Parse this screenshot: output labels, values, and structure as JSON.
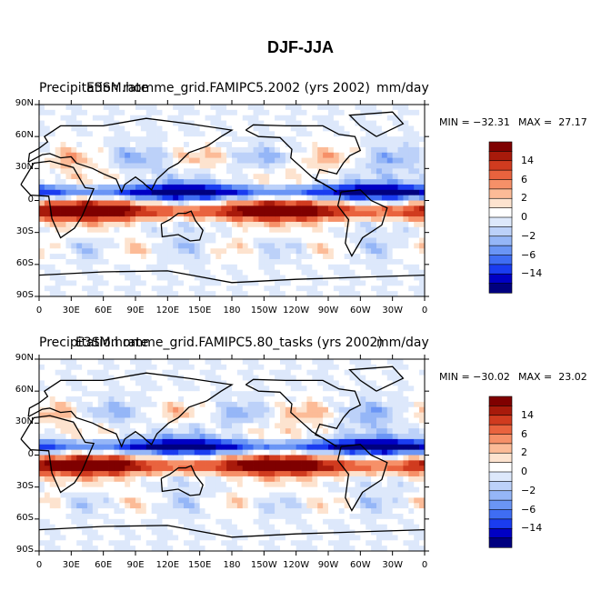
{
  "figure": {
    "title": "DJF-JJA"
  },
  "lat_ticks": [
    "90N",
    "60N",
    "30N",
    "0",
    "30S",
    "60S",
    "90S"
  ],
  "lon_ticks": [
    "0",
    "30E",
    "60E",
    "90E",
    "120E",
    "150E",
    "180",
    "150W",
    "120W",
    "90W",
    "60W",
    "30W",
    "0"
  ],
  "colorbar": {
    "colors": [
      "#00007f",
      "#0000c4",
      "#1a3cf0",
      "#3f6df3",
      "#6a95f5",
      "#95b6f7",
      "#bcd1f9",
      "#dde8fb",
      "#ffffff",
      "#fde3cf",
      "#fcbb97",
      "#f69068",
      "#e9633e",
      "#d03b1f",
      "#a81a0b",
      "#7f0000"
    ],
    "labels": [
      {
        "text": "14",
        "level": 14
      },
      {
        "text": "6",
        "level": 6
      },
      {
        "text": "2",
        "level": 2
      },
      {
        "text": "0",
        "level": 0
      },
      {
        "text": "−2",
        "level": -2
      },
      {
        "text": "−6",
        "level": -6
      },
      {
        "text": "−14",
        "level": -14
      }
    ]
  },
  "panels": [
    {
      "title_left": "Precipitation rate",
      "title_center": "E3SM.homme_grid.FAMIPC5.2002 (yrs 2002)",
      "units": "mm/day",
      "min": "MIN = −32.31",
      "max": "MAX =  27.17"
    },
    {
      "title_left": "Precipitation rate",
      "title_center": "E3SM.homme_grid.FAMIPC5.80_tasks (yrs 2002)",
      "units": "mm/day",
      "min": "MIN = −30.02",
      "max": "MAX =  23.02"
    }
  ]
}
